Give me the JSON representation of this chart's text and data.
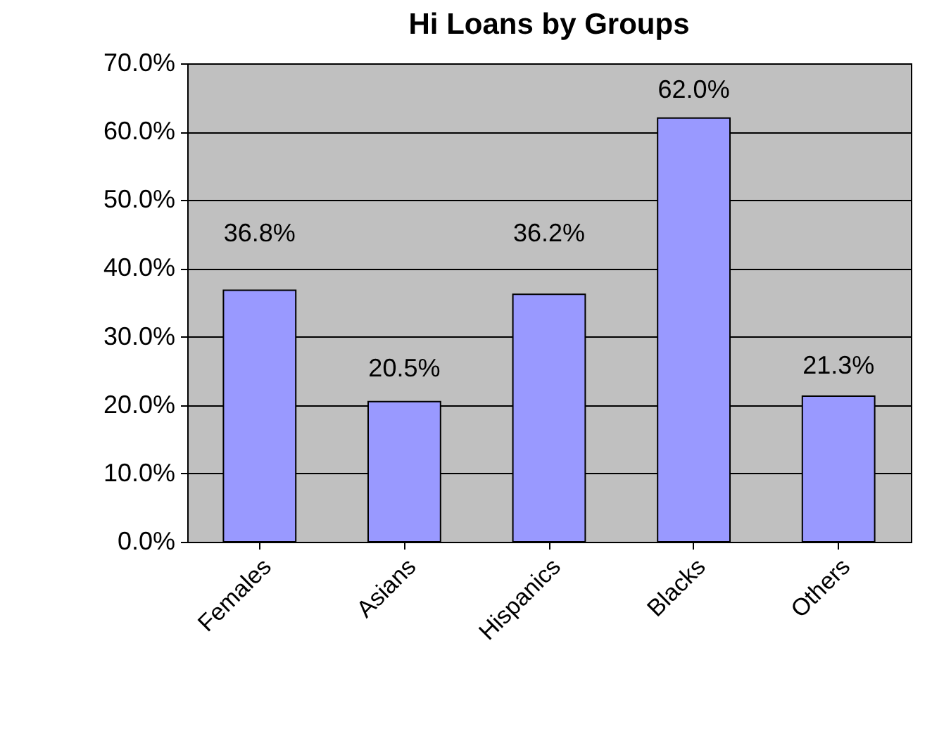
{
  "chart_data": {
    "type": "bar",
    "title": "Hi Loans by Groups",
    "categories": [
      "Females",
      "Asians",
      "Hispanics",
      "Blacks",
      "Others"
    ],
    "values": [
      36.8,
      20.5,
      36.2,
      62.0,
      21.3
    ],
    "value_labels": [
      "36.8%",
      "20.5%",
      "36.2%",
      "62.0%",
      "21.3%"
    ],
    "color": "#9999ff",
    "ylim": [
      0,
      70
    ],
    "yticks": [
      {
        "value": 0,
        "label": "0.0%"
      },
      {
        "value": 10,
        "label": "10.0%"
      },
      {
        "value": 20,
        "label": "20.0%"
      },
      {
        "value": 30,
        "label": "30.0%"
      },
      {
        "value": 40,
        "label": "40.0%"
      },
      {
        "value": 50,
        "label": "50.0%"
      },
      {
        "value": 60,
        "label": "60.0%"
      },
      {
        "value": 70,
        "label": "70.0%"
      }
    ],
    "grid": true
  }
}
